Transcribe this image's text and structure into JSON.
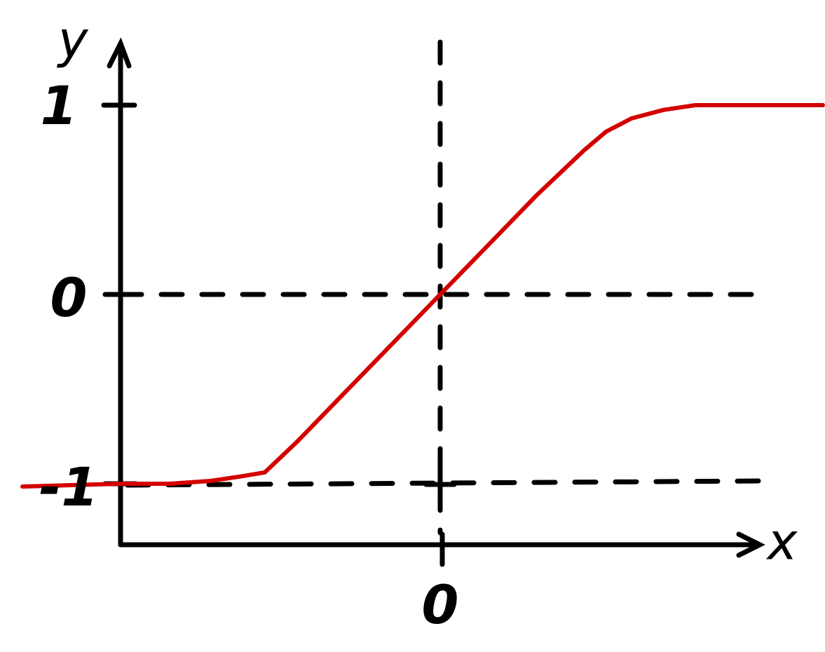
{
  "chart_data": {
    "type": "line",
    "title": "",
    "xlabel": "x",
    "ylabel": "y",
    "x_ticks": [
      "0"
    ],
    "y_ticks": [
      "1",
      "0",
      "-1"
    ],
    "y_range": [
      -1,
      1
    ],
    "grid": false,
    "guide_lines": [
      {
        "orientation": "horizontal",
        "y": 0,
        "style": "dashed"
      },
      {
        "orientation": "horizontal",
        "y": -1,
        "style": "dashed"
      },
      {
        "orientation": "vertical",
        "x": 0,
        "style": "dashed"
      }
    ],
    "series": [
      {
        "color": "#d40000",
        "points": [
          [
            -1.0,
            -1.0
          ],
          [
            -0.85,
            -1.0
          ],
          [
            -0.72,
            -0.985
          ],
          [
            -0.62,
            -0.96
          ],
          [
            -0.55,
            -0.94
          ],
          [
            -0.45,
            -0.78
          ],
          [
            -0.3,
            -0.52
          ],
          [
            -0.15,
            -0.26
          ],
          [
            0.0,
            0.0
          ],
          [
            0.15,
            0.26
          ],
          [
            0.3,
            0.52
          ],
          [
            0.45,
            0.76
          ],
          [
            0.52,
            0.86
          ],
          [
            0.6,
            0.93
          ],
          [
            0.7,
            0.975
          ],
          [
            0.8,
            1.0
          ],
          [
            1.2,
            1.0
          ]
        ]
      }
    ]
  }
}
